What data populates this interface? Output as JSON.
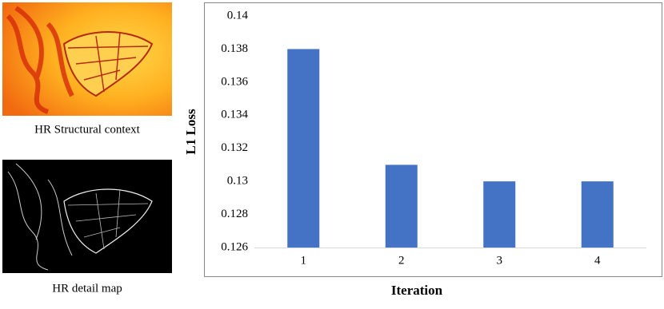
{
  "figure_captions": [
    "HR Structural context",
    "HR detail map"
  ],
  "chart_data": {
    "type": "bar",
    "xlabel": "Iteration",
    "ylabel": "L1 Loss",
    "categories": [
      "1",
      "2",
      "3",
      "4"
    ],
    "values": [
      0.138,
      0.131,
      0.13,
      0.13
    ],
    "color": "#4472c4",
    "ylim": [
      0.126,
      0.14
    ],
    "yticks": [
      0.126,
      0.128,
      0.13,
      0.132,
      0.134,
      0.136,
      0.138,
      0.14
    ],
    "grid": false
  }
}
